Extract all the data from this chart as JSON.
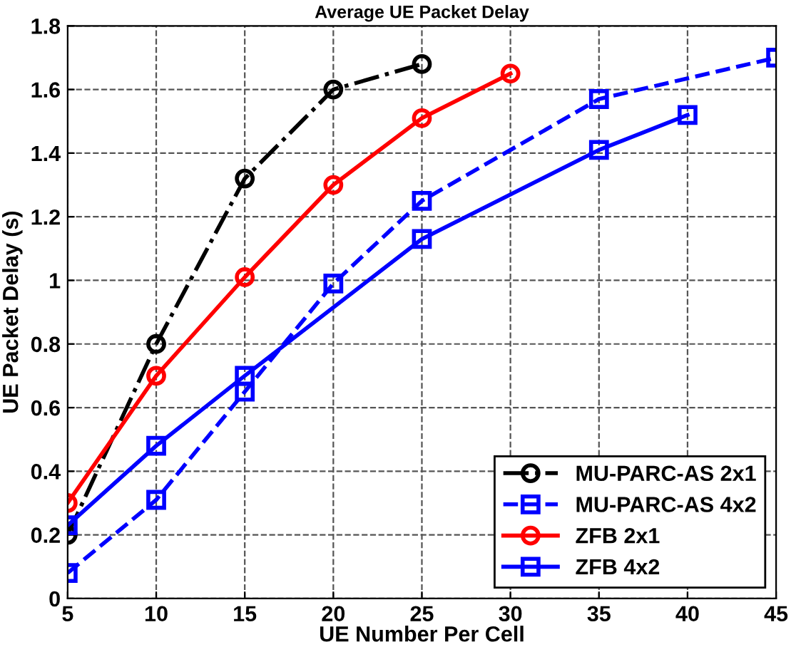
{
  "chart_data": {
    "type": "line",
    "title": "Average UE Packet Delay",
    "xlabel": "UE Number Per Cell",
    "ylabel": "UE Packet Delay (s)",
    "xlim": [
      5,
      45
    ],
    "xticks": [
      5,
      10,
      15,
      20,
      25,
      30,
      35,
      40,
      45
    ],
    "ylim": [
      0,
      1.8
    ],
    "yticks": [
      0,
      0.2,
      0.4,
      0.6,
      0.8,
      1,
      1.2,
      1.4,
      1.6,
      1.8
    ],
    "grid": true,
    "legend": "bottom right",
    "series": [
      {
        "name": "MU-PARC-AS 2x1",
        "color": "#000000",
        "marker": "circle",
        "line_style": "dashdot",
        "x": [
          5,
          10,
          15,
          20,
          25
        ],
        "values": [
          0.2,
          0.8,
          1.32,
          1.6,
          1.68
        ]
      },
      {
        "name": "MU-PARC-AS 4x2",
        "color": "#0000ff",
        "marker": "square",
        "line_style": "dashed",
        "x": [
          5,
          10,
          15,
          20,
          25,
          35,
          45
        ],
        "values": [
          0.08,
          0.31,
          0.65,
          0.99,
          1.25,
          1.57,
          1.7
        ]
      },
      {
        "name": "ZFB 2x1",
        "color": "#ff0000",
        "marker": "circle",
        "line_style": "solid",
        "x": [
          5,
          10,
          15,
          20,
          25,
          30
        ],
        "values": [
          0.3,
          0.7,
          1.01,
          1.3,
          1.51,
          1.65
        ]
      },
      {
        "name": "ZFB 4x2",
        "color": "#0000ff",
        "marker": "square",
        "line_style": "solid",
        "x": [
          5,
          10,
          15,
          25,
          35,
          40
        ],
        "values": [
          0.23,
          0.48,
          0.7,
          1.13,
          1.41,
          1.52
        ]
      }
    ]
  }
}
